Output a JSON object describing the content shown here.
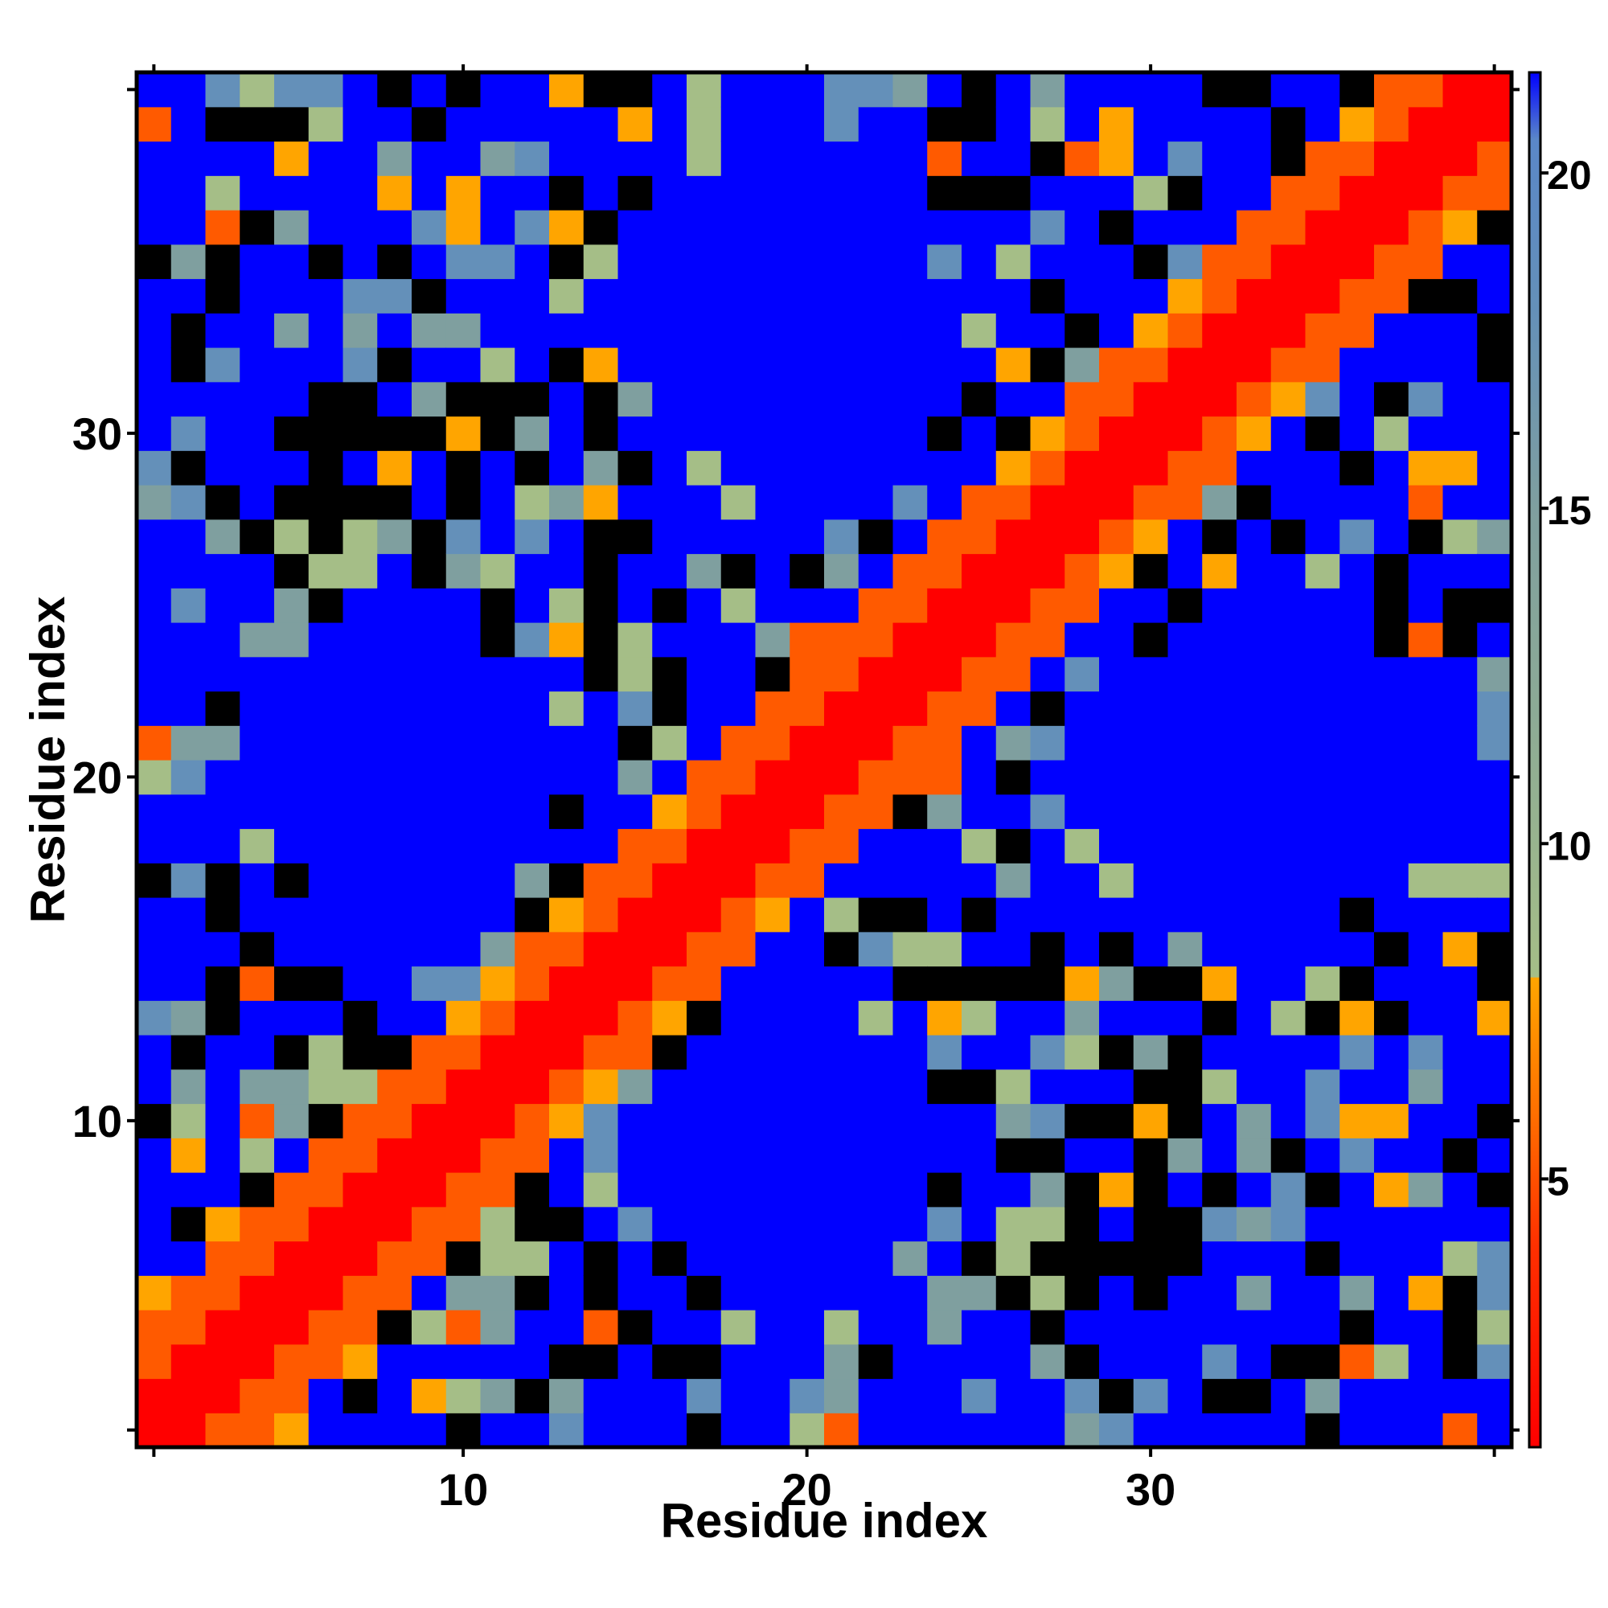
{
  "chart_data": {
    "type": "heatmap",
    "title": "",
    "xlabel": "Residue index",
    "ylabel": "Residue index",
    "n": 40,
    "x_range": [
      1,
      40
    ],
    "y_range": [
      1,
      40
    ],
    "x_ticks": [
      10,
      20,
      30
    ],
    "y_ticks": [
      10,
      20,
      30
    ],
    "colorbar_ticks": [
      5,
      10,
      15,
      20
    ],
    "colorbar_range": [
      1,
      21.5
    ],
    "colormap": {
      "red": "#ff0000",
      "orange_red": "#ff5a00",
      "orange": "#ffa500",
      "sage_green": "#a5be87",
      "gray_teal": "#7f9f9f",
      "steel_blue": "#6490b9",
      "mid_blue": "#5a87c8",
      "blue": "#0000ff"
    },
    "colorbar_stops": [
      {
        "value": 1,
        "color": "#ff0000"
      },
      {
        "value": 4,
        "color": "#ff3000"
      },
      {
        "value": 6,
        "color": "#ff7000"
      },
      {
        "value": 8,
        "color": "#ffa500"
      },
      {
        "value": 8.01,
        "color": "#a5be87"
      },
      {
        "value": 12,
        "color": "#8caa96"
      },
      {
        "value": 15,
        "color": "#7f9f9f"
      },
      {
        "value": 18,
        "color": "#6490b9"
      },
      {
        "value": 20.5,
        "color": "#5a87c8"
      },
      {
        "value": 21.5,
        "color": "#0000ff"
      }
    ],
    "legend": "right colorbar",
    "grid": false,
    "description_of_values": "Pairwise residue distance matrix, symmetric about the diagonal"
  }
}
